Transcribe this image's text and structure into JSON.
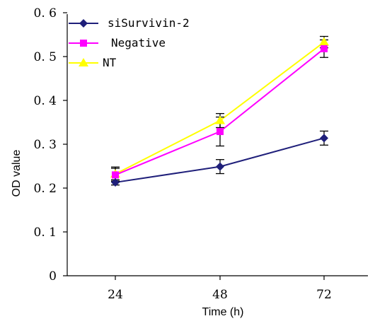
{
  "chart_data": {
    "type": "line",
    "xlabel": "Time (h)",
    "ylabel": "OD value",
    "x": [
      24,
      48,
      72
    ],
    "x_tick_labels": [
      "24",
      "48",
      "72"
    ],
    "y_ticks": [
      0,
      0.1,
      0.2,
      0.3,
      0.4,
      0.5,
      0.6
    ],
    "y_tick_labels": [
      "0",
      "0. 1",
      "0. 2",
      "0. 3",
      "0. 4",
      "0. 5",
      "0. 6"
    ],
    "ylim": [
      0,
      0.6
    ],
    "grid": false,
    "legend_position": "top-left",
    "series": [
      {
        "name": "siSurvivin-2",
        "marker": "diamond",
        "color": "#1f1f7a",
        "values": [
          0.213,
          0.249,
          0.314
        ],
        "errors": [
          0.006,
          0.016,
          0.016
        ]
      },
      {
        "name": "Negative",
        "marker": "square",
        "color": "#ff00ff",
        "values": [
          0.23,
          0.329,
          0.518
        ],
        "errors": [
          0.015,
          0.033,
          0.02
        ]
      },
      {
        "name": "NT",
        "marker": "triangle",
        "color": "#ffff00",
        "values": [
          0.232,
          0.354,
          0.533
        ],
        "errors": [
          0.016,
          0.016,
          0.013
        ]
      }
    ]
  }
}
